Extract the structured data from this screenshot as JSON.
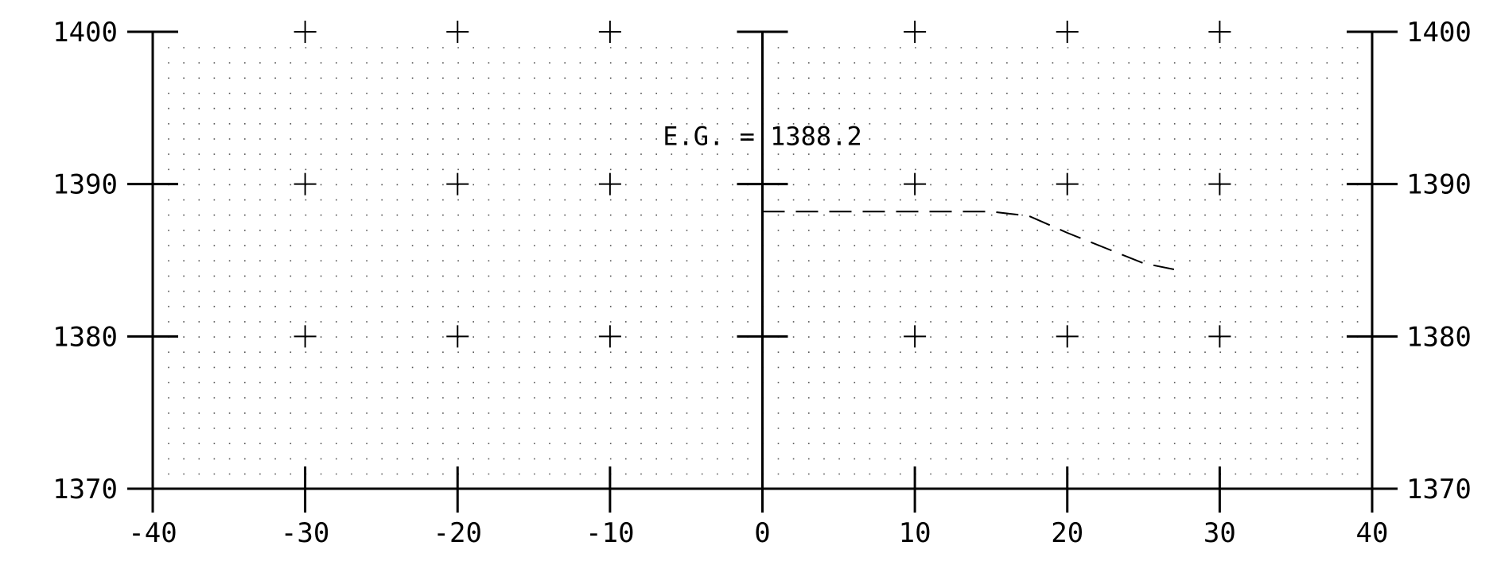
{
  "chart_data": {
    "type": "line",
    "title": "",
    "xlabel": "",
    "ylabel": "",
    "xlim": [
      -40,
      40
    ],
    "ylim": [
      1370,
      1400
    ],
    "x_ticks": [
      -40,
      -30,
      -20,
      -10,
      0,
      10,
      20,
      30,
      40
    ],
    "y_ticks": [
      1370,
      1380,
      1390,
      1400
    ],
    "x_tick_labels": [
      "-40",
      "-30",
      "-20",
      "-10",
      "0",
      "10",
      "20",
      "30",
      "40"
    ],
    "y_tick_labels": [
      "1370",
      "1380",
      "1390",
      "1400"
    ],
    "grid": "dotted",
    "legend": "none",
    "series": [
      {
        "style": "dashed",
        "x": [
          0,
          5,
          10,
          15,
          17.5,
          20,
          25,
          27
        ],
        "y": [
          1388.2,
          1388.2,
          1388.2,
          1388.2,
          1387.9,
          1386.8,
          1384.8,
          1384.4
        ]
      }
    ],
    "annotations": [
      {
        "text": "E.G. = 1388.2",
        "x": 0,
        "y": 1393.2
      }
    ]
  }
}
